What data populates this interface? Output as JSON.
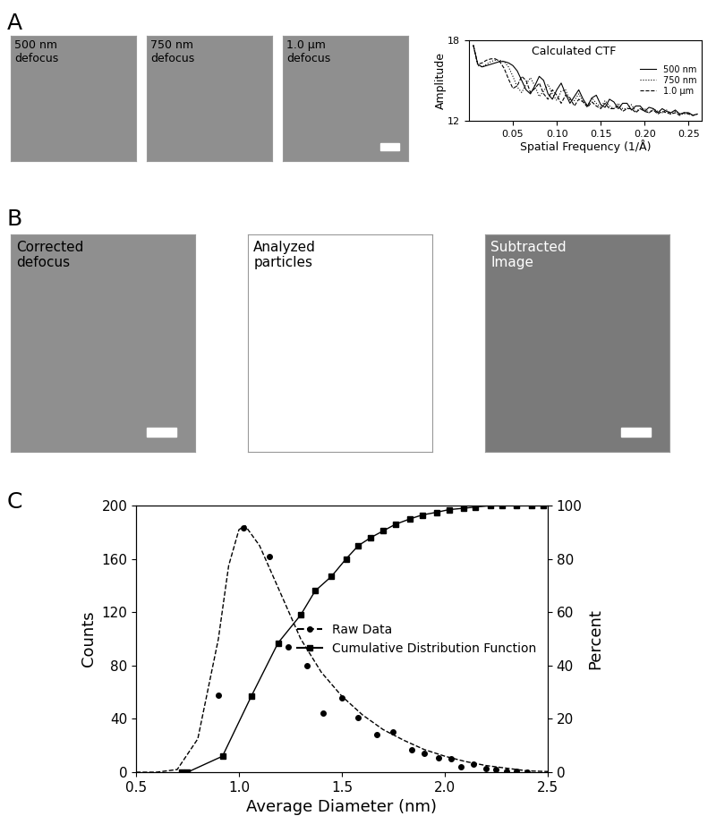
{
  "panels": {
    "labels": [
      "A",
      "B",
      "C"
    ]
  },
  "images": {
    "A": [
      "500 nm\ndefocus",
      "750 nm\ndefocus",
      "1.0 µm\ndefocus"
    ],
    "B": [
      "Corrected\ndefocus",
      "Analyzed\nparticles",
      "Subtracted\nImage"
    ]
  },
  "chart_data": [
    {
      "type": "line",
      "title": "Calculated CTF",
      "xlabel": "Spatial Frequency (1/Å)",
      "ylabel": "Amplitude",
      "x": [
        0.005,
        0.01,
        0.015,
        0.02,
        0.025,
        0.03,
        0.035,
        0.04,
        0.045,
        0.05,
        0.055,
        0.06,
        0.065,
        0.07,
        0.075,
        0.08,
        0.085,
        0.09,
        0.095,
        0.1,
        0.105,
        0.11,
        0.115,
        0.12,
        0.125,
        0.13,
        0.135,
        0.14,
        0.145,
        0.15,
        0.155,
        0.16,
        0.165,
        0.17,
        0.175,
        0.18,
        0.185,
        0.19,
        0.195,
        0.2,
        0.205,
        0.21,
        0.215,
        0.22,
        0.225,
        0.23,
        0.235,
        0.24,
        0.245,
        0.25,
        0.255,
        0.26
      ],
      "series": [
        {
          "name": "500 nm",
          "color": "#000000",
          "line_style": "solid",
          "values": [
            17.6,
            16.2,
            16.0,
            16.1,
            16.2,
            16.3,
            16.4,
            16.4,
            16.3,
            16.1,
            15.7,
            15.0,
            14.3,
            14.0,
            14.6,
            15.3,
            15.0,
            14.0,
            13.6,
            14.3,
            14.8,
            14.0,
            13.3,
            13.8,
            14.3,
            13.6,
            13.1,
            13.7,
            13.9,
            13.2,
            13.0,
            13.6,
            13.4,
            12.9,
            13.3,
            13.3,
            12.8,
            13.1,
            13.1,
            12.7,
            13.0,
            12.9,
            12.6,
            12.9,
            12.7,
            12.6,
            12.8,
            12.5,
            12.6,
            12.6,
            12.4,
            12.5
          ]
        },
        {
          "name": "750 nm",
          "color": "#000000",
          "line_style": "dotted",
          "values": [
            17.6,
            16.1,
            16.0,
            16.2,
            16.4,
            16.5,
            16.5,
            16.4,
            16.0,
            15.3,
            14.5,
            14.1,
            14.7,
            15.2,
            14.6,
            13.8,
            14.2,
            14.7,
            14.0,
            13.5,
            14.2,
            14.3,
            13.5,
            13.5,
            14.0,
            13.4,
            13.1,
            13.7,
            13.3,
            13.0,
            13.5,
            13.1,
            12.9,
            13.3,
            12.9,
            12.9,
            13.2,
            12.7,
            12.9,
            12.9,
            12.6,
            12.9,
            12.7,
            12.6,
            12.8,
            12.5,
            12.7,
            12.5,
            12.5,
            12.6,
            12.4,
            12.5
          ]
        },
        {
          "name": "1.0 µm",
          "color": "#000000",
          "line_style": "dashed",
          "values": [
            17.6,
            16.2,
            16.3,
            16.5,
            16.6,
            16.6,
            16.4,
            15.9,
            15.1,
            14.4,
            14.6,
            15.3,
            15.0,
            14.1,
            14.4,
            14.8,
            14.0,
            13.6,
            14.3,
            13.9,
            13.3,
            13.9,
            13.7,
            13.1,
            13.6,
            13.4,
            13.0,
            13.4,
            13.1,
            12.9,
            13.3,
            12.9,
            12.9,
            13.1,
            12.7,
            12.9,
            12.9,
            12.6,
            12.9,
            12.7,
            12.6,
            12.8,
            12.5,
            12.7,
            12.6,
            12.5,
            12.6,
            12.4,
            12.6,
            12.5,
            12.4,
            12.5
          ]
        }
      ],
      "xlim": [
        0,
        0.265
      ],
      "ylim": [
        12,
        18
      ],
      "xticks": [
        0.05,
        {
          "value": 0.1,
          "label": "0.10"
        },
        0.15,
        {
          "value": 0.2,
          "label": "0.20"
        },
        0.25
      ],
      "yticks": [
        12,
        18
      ],
      "legend": "center right"
    },
    {
      "type": "line",
      "xlabel": "Average Diameter (nm)",
      "ylabel": "Counts",
      "y2label": "Percent",
      "series": [
        {
          "name": "Raw Data",
          "color": "#000000",
          "marker": "circle",
          "line_style": "dashed",
          "x": [
            0.72,
            0.75,
            0.9,
            1.02,
            1.15,
            1.24,
            1.33,
            1.41,
            1.5,
            1.58,
            1.67,
            1.75,
            1.84,
            1.9,
            1.97,
            2.03,
            2.08,
            2.14,
            2.2,
            2.25,
            2.3,
            2.35,
            2.4
          ],
          "values": [
            0,
            0,
            58,
            183,
            162,
            94,
            80,
            44,
            56,
            41,
            28,
            30,
            17,
            14,
            11,
            10,
            4,
            6,
            3,
            2,
            1,
            1,
            0
          ],
          "fit_x": [
            0.5,
            0.6,
            0.7,
            0.8,
            0.9,
            0.95,
            1.0,
            1.03,
            1.1,
            1.2,
            1.3,
            1.4,
            1.5,
            1.6,
            1.7,
            1.8,
            1.9,
            2.0,
            2.1,
            2.2,
            2.3,
            2.4,
            2.5
          ],
          "fit_values": [
            0,
            0,
            2,
            25,
            100,
            155,
            182,
            185,
            170,
            135,
            100,
            75,
            57,
            43,
            32,
            24,
            17,
            12,
            8,
            5,
            3,
            1,
            0.5
          ]
        },
        {
          "name": "Cumulative Distribution Function",
          "color": "#000000",
          "marker": "square",
          "line_style": "solid",
          "axis": "y2",
          "x": [
            0.72,
            0.75,
            0.92,
            1.06,
            1.19,
            1.3,
            1.37,
            1.45,
            1.52,
            1.58,
            1.64,
            1.7,
            1.76,
            1.83,
            1.89,
            1.96,
            2.02,
            2.09,
            2.15,
            2.22,
            2.28,
            2.35,
            2.42,
            2.48
          ],
          "values": [
            0,
            0,
            6,
            28.5,
            48.5,
            59,
            68,
            73.5,
            80,
            85,
            88,
            90.5,
            93,
            95,
            96.5,
            97.5,
            98.5,
            99,
            99.5,
            100,
            100,
            100,
            100,
            100
          ]
        }
      ],
      "xlim": [
        0.5,
        2.5
      ],
      "ylim": [
        0,
        200
      ],
      "y2lim": [
        0,
        100
      ],
      "xticks": [
        0.5,
        1.0,
        1.5,
        2.0,
        2.5
      ],
      "yticks": [
        0,
        40,
        80,
        120,
        160,
        200
      ],
      "y2ticks": [
        0,
        20,
        40,
        60,
        80,
        100
      ],
      "legend": "center right"
    }
  ]
}
